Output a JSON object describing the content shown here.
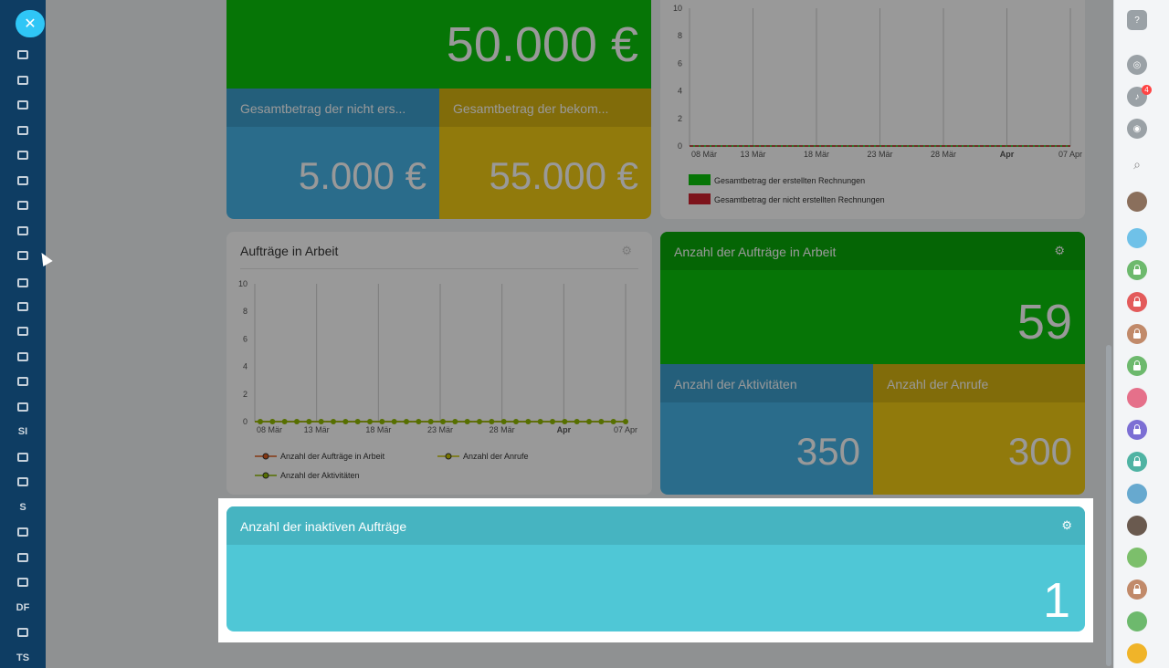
{
  "tiles_top": {
    "total_value": "50.000 €",
    "not_created_label": "Gesamtbetrag der nicht ers...",
    "not_created_value": "5.000 €",
    "received_label": "Gesamtbetrag der bekom...",
    "received_value": "55.000 €"
  },
  "chart1": {
    "y_ticks": [
      "10",
      "8",
      "6",
      "4",
      "2",
      "0"
    ],
    "x_ticks": [
      "08 Mär",
      "13 Mär",
      "18 Mär",
      "23 Mär",
      "28 Mär",
      "Apr",
      "07 Apr"
    ],
    "legend": [
      "Gesamtbetrag der erstellten Rechnungen",
      "Gesamtbetrag der nicht erstellten Rechnungen"
    ]
  },
  "chart2": {
    "title": "Aufträge in Arbeit",
    "y_ticks": [
      "10",
      "8",
      "6",
      "4",
      "2",
      "0"
    ],
    "x_ticks": [
      "08 Mär",
      "13 Mär",
      "18 Mär",
      "23 Mär",
      "28 Mär",
      "Apr",
      "07 Apr"
    ],
    "legend": [
      "Anzahl der Aufträge in Arbeit",
      "Anzahl der Anrufe",
      "Anzahl der Aktivitäten"
    ]
  },
  "orders_tile": {
    "title": "Anzahl der Aufträge in Arbeit",
    "value": "59",
    "activities_label": "Anzahl der Aktivitäten",
    "activities_value": "350",
    "calls_label": "Anzahl der Anrufe",
    "calls_value": "300"
  },
  "inactive_tile": {
    "title": "Anzahl der inaktiven Aufträge",
    "value": "1"
  },
  "left_nav_text": {
    "si": "SI",
    "s": "S",
    "df": "DF",
    "ts": "TS"
  },
  "right_bar": {
    "notification_count": "4"
  },
  "colors": {
    "green": "#0bc40b",
    "blue": "#46b4e8",
    "yellow": "#f2cc14",
    "teal": "#4fc7d6",
    "red": "#d0202d",
    "series_orange": "#e05d1f",
    "series_olive": "#c8c400",
    "series_green": "#8fb900"
  },
  "chart_data": [
    {
      "type": "line",
      "x": [
        "08 Mär",
        "13 Mär",
        "18 Mär",
        "23 Mär",
        "28 Mär",
        "Apr",
        "07 Apr"
      ],
      "series": [
        {
          "name": "Gesamtbetrag der erstellten Rechnungen",
          "values": [
            0,
            0,
            0,
            0,
            0,
            0,
            0
          ]
        },
        {
          "name": "Gesamtbetrag der nicht erstellten Rechnungen",
          "values": [
            0,
            0,
            0,
            0,
            0,
            0,
            0
          ]
        }
      ],
      "ylim": [
        0,
        10
      ]
    },
    {
      "type": "line",
      "title": "Aufträge in Arbeit",
      "x": [
        "08 Mär",
        "13 Mär",
        "18 Mär",
        "23 Mär",
        "28 Mär",
        "Apr",
        "07 Apr"
      ],
      "series": [
        {
          "name": "Anzahl der Aufträge in Arbeit",
          "values": [
            0,
            0,
            0,
            0,
            0,
            0,
            0
          ]
        },
        {
          "name": "Anzahl der Anrufe",
          "values": [
            0,
            0,
            0,
            0,
            0,
            0,
            0
          ]
        },
        {
          "name": "Anzahl der Aktivitäten",
          "values": [
            0,
            0,
            0,
            0,
            0,
            0,
            0
          ]
        }
      ],
      "ylim": [
        0,
        10
      ]
    }
  ]
}
